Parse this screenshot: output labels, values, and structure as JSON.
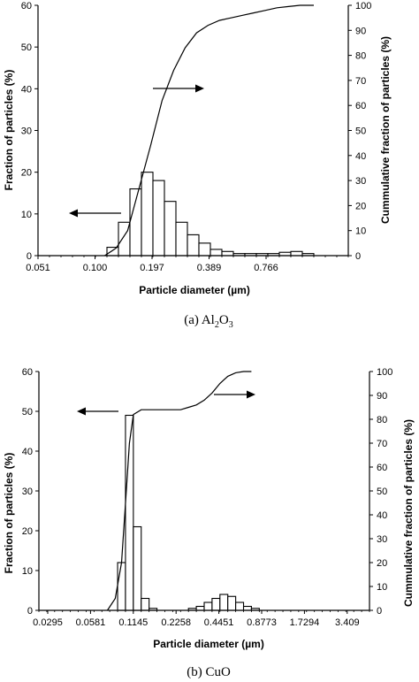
{
  "chart_data": [
    {
      "type": "bar",
      "caption": {
        "prefix": "(a) Al",
        "sub1": "2",
        "mid": "O",
        "sub2": "3"
      },
      "xlabel": "Particle diameter (µm)",
      "ylabel": "Fraction of particles (%)",
      "ylabel2": "Cummulative fraction of particles (%)",
      "ylim": [
        0,
        60
      ],
      "ylim2": [
        0,
        100
      ],
      "yticks": [
        "0",
        "10",
        "20",
        "30",
        "40",
        "50",
        "60"
      ],
      "yticks2": [
        "0",
        "10",
        "20",
        "30",
        "40",
        "50",
        "60",
        "70",
        "80",
        "90",
        "100"
      ],
      "x_tick_labels": [
        "0.051",
        "0.100",
        "0.197",
        "0.389",
        "0.766"
      ],
      "series": [
        {
          "type": "bar",
          "values": [
            0,
            0,
            0,
            0,
            0,
            0,
            2,
            8,
            16,
            20,
            18,
            13,
            8,
            5,
            3,
            1.5,
            1,
            0.5,
            0.5,
            0.5,
            0.5,
            0.8,
            1,
            0.5,
            0,
            0,
            0
          ]
        },
        {
          "type": "line",
          "axis": "right",
          "x_bin": [
            5.8,
            6.8,
            7.8,
            8.8,
            9.8,
            10.8,
            11.8,
            12.8,
            13.8,
            14.8,
            15.8,
            16.8,
            17.8,
            18.8,
            19.8,
            20.8,
            21.8,
            22.8,
            24.0
          ],
          "values": [
            0,
            3,
            10,
            27,
            44,
            62,
            74,
            83,
            89,
            92,
            94,
            95,
            96,
            97,
            98,
            99,
            99.5,
            100,
            100
          ]
        }
      ],
      "arrows": [
        {
          "direction": "left",
          "points_to": "left axis"
        },
        {
          "direction": "right",
          "points_to": "right axis"
        }
      ]
    },
    {
      "type": "bar",
      "caption": {
        "prefix": "(b) CuO"
      },
      "xlabel": "Particle diameter (µm)",
      "ylabel": "Fraction of particles (%)",
      "ylabel2": "Cummulative fraction of particles (%)",
      "ylim": [
        0,
        60
      ],
      "ylim2": [
        0,
        100
      ],
      "yticks": [
        "0",
        "10",
        "20",
        "30",
        "40",
        "50",
        "60"
      ],
      "yticks2": [
        "0",
        "10",
        "20",
        "30",
        "40",
        "50",
        "60",
        "70",
        "80",
        "90",
        "100"
      ],
      "x_tick_labels": [
        "0.0295",
        "0.0581",
        "0.1145",
        "0.2258",
        "0.4451",
        "0.8773",
        "1.7294",
        "3.409"
      ],
      "series": [
        {
          "type": "bar",
          "values": [
            0,
            0,
            0,
            0,
            0,
            0,
            0,
            0,
            0,
            0,
            12,
            49,
            21,
            3,
            0.5,
            0,
            0,
            0,
            0,
            0.5,
            1,
            2,
            3,
            4,
            3.5,
            2,
            1,
            0.5,
            0,
            0,
            0,
            0,
            0,
            0,
            0,
            0,
            0,
            0,
            0,
            0,
            0,
            0
          ]
        },
        {
          "type": "line",
          "axis": "right",
          "x_bin": [
            8.7,
            9.7,
            10.5,
            11.0,
            11.5,
            12.0,
            13.0,
            14.0,
            16.0,
            18.0,
            19.0,
            20.0,
            21.0,
            22.0,
            23.0,
            24.0,
            25.0,
            26.0,
            27.0
          ],
          "values": [
            0,
            5,
            20,
            45,
            70,
            82,
            84,
            84,
            84,
            84,
            85,
            86,
            88,
            91,
            95,
            98,
            99.5,
            100,
            100
          ]
        }
      ],
      "arrows": [
        {
          "direction": "left",
          "points_to": "left axis"
        },
        {
          "direction": "right",
          "points_to": "right axis"
        }
      ]
    }
  ]
}
